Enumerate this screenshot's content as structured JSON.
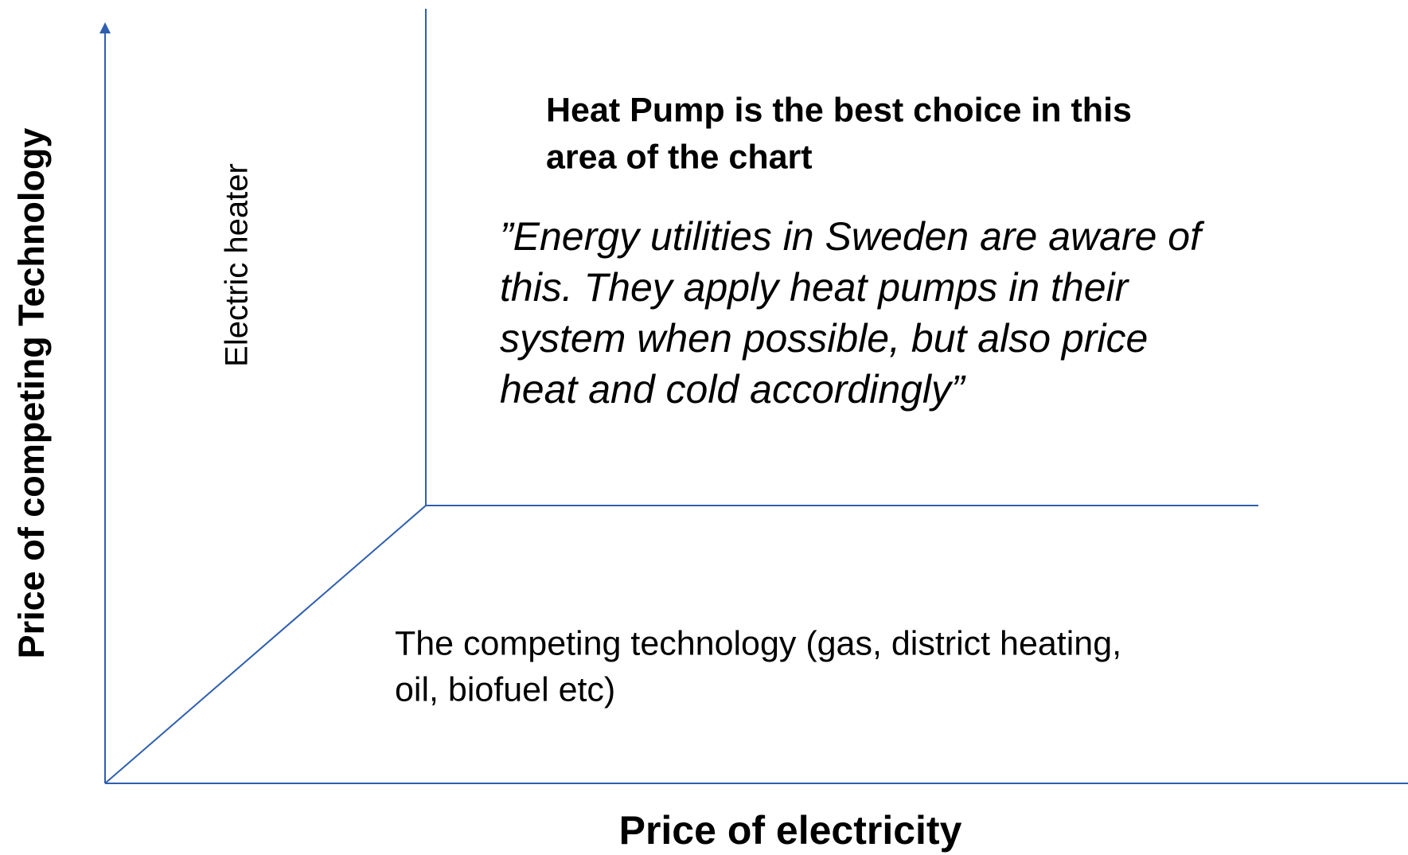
{
  "axes": {
    "y_label": "Price of competing Technology",
    "x_label": "Price of electricity"
  },
  "regions": {
    "electric_heater": "Electric heater",
    "heat_pump": {
      "heading": [
        "Heat Pump is the best choice in this",
        "area of the chart"
      ],
      "quote": [
        "”Energy utilities in Sweden are aware of",
        "this. They apply heat pumps in their",
        "system when possible, but also price",
        "heat and cold accordingly”"
      ]
    },
    "competing": [
      "The competing technology (gas, district heating,",
      "oil, biofuel etc)"
    ]
  }
}
